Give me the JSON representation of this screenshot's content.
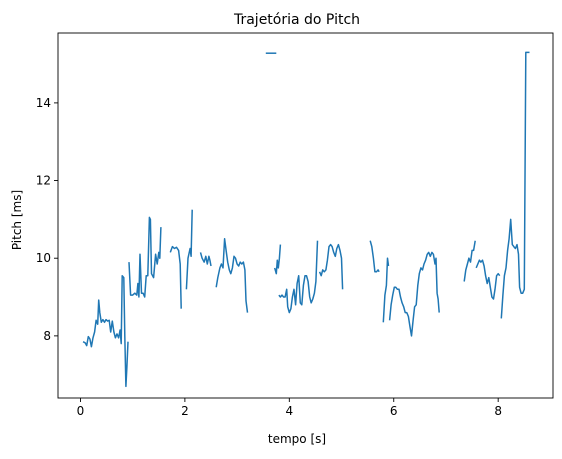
{
  "chart_data": {
    "type": "line",
    "title": "Trajetória do Pitch",
    "xlabel": "tempo [s]",
    "ylabel": "Pitch [ms]",
    "xlim": [
      -0.43,
      9.05
    ],
    "ylim": [
      6.4,
      15.8
    ],
    "x_ticks": [
      0,
      2,
      4,
      6,
      8
    ],
    "x_tick_labels": [
      "0",
      "2",
      "4",
      "6",
      "8"
    ],
    "y_ticks": [
      8,
      10,
      12,
      14
    ],
    "y_tick_labels": [
      "8",
      "10",
      "12",
      "14"
    ],
    "grid": false,
    "legend": "none",
    "series": [
      {
        "color": "#1f77b4",
        "segments": [
          [
            [
              0.05,
              7.85
            ],
            [
              0.09,
              7.82
            ],
            [
              0.12,
              7.75
            ],
            [
              0.15,
              7.98
            ],
            [
              0.18,
              7.92
            ],
            [
              0.21,
              7.72
            ],
            [
              0.24,
              7.95
            ],
            [
              0.27,
              8.1
            ],
            [
              0.3,
              8.4
            ],
            [
              0.33,
              8.3
            ],
            [
              0.35,
              8.92
            ],
            [
              0.37,
              8.6
            ],
            [
              0.4,
              8.35
            ],
            [
              0.43,
              8.42
            ],
            [
              0.46,
              8.35
            ],
            [
              0.49,
              8.42
            ],
            [
              0.52,
              8.38
            ],
            [
              0.55,
              8.4
            ],
            [
              0.58,
              8.1
            ],
            [
              0.61,
              8.38
            ],
            [
              0.64,
              8.1
            ],
            [
              0.67,
              7.95
            ],
            [
              0.7,
              8.05
            ],
            [
              0.73,
              7.95
            ],
            [
              0.76,
              8.15
            ],
            [
              0.78,
              7.8
            ],
            [
              0.8,
              9.55
            ],
            [
              0.83,
              9.5
            ],
            [
              0.85,
              8.0
            ],
            [
              0.87,
              6.7
            ],
            [
              0.89,
              7.2
            ],
            [
              0.91,
              7.85
            ]
          ],
          [
            [
              0.93,
              9.9
            ],
            [
              0.96,
              9.05
            ],
            [
              1.0,
              9.05
            ],
            [
              1.04,
              9.1
            ],
            [
              1.08,
              9.05
            ],
            [
              1.1,
              9.35
            ],
            [
              1.12,
              9.0
            ],
            [
              1.14,
              10.1
            ],
            [
              1.17,
              9.1
            ],
            [
              1.2,
              9.1
            ],
            [
              1.23,
              9.0
            ],
            [
              1.26,
              9.55
            ],
            [
              1.29,
              9.55
            ],
            [
              1.32,
              11.05
            ],
            [
              1.34,
              11.0
            ],
            [
              1.36,
              9.6
            ],
            [
              1.4,
              9.5
            ],
            [
              1.44,
              10.1
            ],
            [
              1.47,
              9.85
            ],
            [
              1.5,
              10.15
            ],
            [
              1.52,
              10.0
            ],
            [
              1.54,
              10.8
            ]
          ],
          [
            [
              1.72,
              10.15
            ],
            [
              1.76,
              10.3
            ],
            [
              1.8,
              10.25
            ],
            [
              1.84,
              10.28
            ],
            [
              1.88,
              10.2
            ],
            [
              1.91,
              9.85
            ],
            [
              1.93,
              8.7
            ]
          ],
          [
            [
              2.03,
              9.2
            ],
            [
              2.06,
              10.0
            ],
            [
              2.1,
              10.25
            ],
            [
              2.12,
              10.05
            ],
            [
              2.14,
              11.25
            ]
          ],
          [
            [
              2.3,
              10.15
            ],
            [
              2.33,
              10.0
            ],
            [
              2.37,
              9.9
            ],
            [
              2.4,
              10.05
            ],
            [
              2.43,
              9.85
            ],
            [
              2.46,
              10.05
            ],
            [
              2.48,
              9.95
            ],
            [
              2.5,
              9.8
            ]
          ],
          [
            [
              2.6,
              9.25
            ],
            [
              2.63,
              9.5
            ],
            [
              2.67,
              9.75
            ],
            [
              2.7,
              9.85
            ],
            [
              2.73,
              9.75
            ],
            [
              2.76,
              10.5
            ],
            [
              2.79,
              10.2
            ],
            [
              2.82,
              9.9
            ],
            [
              2.85,
              9.7
            ],
            [
              2.88,
              9.6
            ],
            [
              2.91,
              9.75
            ],
            [
              2.94,
              10.05
            ],
            [
              2.97,
              10.0
            ],
            [
              3.0,
              9.85
            ],
            [
              3.03,
              9.8
            ],
            [
              3.06,
              9.9
            ],
            [
              3.09,
              9.85
            ],
            [
              3.12,
              9.9
            ],
            [
              3.15,
              9.7
            ],
            [
              3.17,
              8.9
            ],
            [
              3.2,
              8.6
            ]
          ],
          [
            [
              3.55,
              15.28
            ],
            [
              3.65,
              15.28
            ],
            [
              3.75,
              15.28
            ]
          ],
          [
            [
              3.72,
              9.75
            ],
            [
              3.75,
              9.6
            ],
            [
              3.77,
              9.95
            ],
            [
              3.79,
              9.75
            ],
            [
              3.81,
              10.0
            ],
            [
              3.83,
              10.35
            ]
          ],
          [
            [
              3.8,
              9.05
            ],
            [
              3.83,
              9.0
            ],
            [
              3.86,
              9.05
            ],
            [
              3.89,
              9.0
            ],
            [
              3.92,
              9.0
            ],
            [
              3.95,
              9.2
            ],
            [
              3.97,
              8.75
            ],
            [
              4.0,
              8.6
            ],
            [
              4.03,
              8.7
            ],
            [
              4.06,
              9.0
            ],
            [
              4.09,
              9.2
            ],
            [
              4.12,
              8.8
            ],
            [
              4.15,
              9.35
            ],
            [
              4.18,
              9.55
            ],
            [
              4.21,
              8.85
            ],
            [
              4.24,
              8.8
            ],
            [
              4.27,
              9.3
            ],
            [
              4.3,
              9.55
            ],
            [
              4.33,
              9.55
            ],
            [
              4.36,
              9.4
            ],
            [
              4.39,
              9.0
            ],
            [
              4.42,
              8.85
            ],
            [
              4.45,
              8.95
            ],
            [
              4.48,
              9.1
            ],
            [
              4.51,
              9.4
            ],
            [
              4.54,
              10.45
            ]
          ],
          [
            [
              4.58,
              9.65
            ],
            [
              4.61,
              9.55
            ],
            [
              4.64,
              9.7
            ],
            [
              4.67,
              9.65
            ],
            [
              4.7,
              9.7
            ],
            [
              4.73,
              9.95
            ],
            [
              4.76,
              10.3
            ],
            [
              4.79,
              10.35
            ],
            [
              4.82,
              10.3
            ],
            [
              4.85,
              10.15
            ],
            [
              4.88,
              10.05
            ],
            [
              4.91,
              10.25
            ],
            [
              4.94,
              10.35
            ],
            [
              4.97,
              10.2
            ],
            [
              5.0,
              10.0
            ],
            [
              5.02,
              9.2
            ]
          ],
          [
            [
              5.55,
              10.45
            ],
            [
              5.58,
              10.3
            ],
            [
              5.61,
              10.0
            ],
            [
              5.64,
              9.65
            ],
            [
              5.67,
              9.65
            ],
            [
              5.7,
              9.7
            ],
            [
              5.72,
              9.65
            ]
          ],
          [
            [
              5.8,
              8.35
            ],
            [
              5.83,
              9.05
            ],
            [
              5.86,
              9.3
            ],
            [
              5.88,
              10.0
            ],
            [
              5.9,
              9.8
            ]
          ],
          [
            [
              5.92,
              8.4
            ],
            [
              5.95,
              8.8
            ],
            [
              5.98,
              9.05
            ],
            [
              6.01,
              9.25
            ],
            [
              6.04,
              9.25
            ],
            [
              6.07,
              9.2
            ],
            [
              6.1,
              9.2
            ],
            [
              6.13,
              9.0
            ],
            [
              6.16,
              8.85
            ],
            [
              6.19,
              8.75
            ],
            [
              6.22,
              8.6
            ],
            [
              6.25,
              8.6
            ],
            [
              6.28,
              8.5
            ],
            [
              6.31,
              8.25
            ],
            [
              6.34,
              8.0
            ],
            [
              6.37,
              8.4
            ],
            [
              6.4,
              8.75
            ],
            [
              6.43,
              8.8
            ],
            [
              6.46,
              9.3
            ],
            [
              6.49,
              9.6
            ],
            [
              6.52,
              9.75
            ],
            [
              6.55,
              9.7
            ],
            [
              6.58,
              9.85
            ],
            [
              6.61,
              9.95
            ],
            [
              6.64,
              10.1
            ],
            [
              6.67,
              10.15
            ],
            [
              6.7,
              10.05
            ],
            [
              6.73,
              10.15
            ],
            [
              6.76,
              10.1
            ],
            [
              6.79,
              9.85
            ],
            [
              6.81,
              10.0
            ],
            [
              6.83,
              9.1
            ],
            [
              6.85,
              8.95
            ],
            [
              6.87,
              8.6
            ]
          ],
          [
            [
              7.35,
              9.4
            ],
            [
              7.38,
              9.7
            ],
            [
              7.41,
              9.85
            ],
            [
              7.44,
              10.0
            ],
            [
              7.47,
              9.9
            ],
            [
              7.5,
              10.2
            ],
            [
              7.53,
              10.2
            ],
            [
              7.56,
              10.45
            ]
          ],
          [
            [
              7.58,
              9.75
            ],
            [
              7.61,
              9.85
            ],
            [
              7.64,
              9.95
            ],
            [
              7.67,
              9.9
            ],
            [
              7.7,
              9.95
            ],
            [
              7.73,
              9.8
            ],
            [
              7.76,
              9.55
            ],
            [
              7.79,
              9.35
            ],
            [
              7.82,
              9.5
            ],
            [
              7.85,
              9.25
            ],
            [
              7.88,
              9.0
            ],
            [
              7.91,
              8.95
            ],
            [
              7.94,
              9.2
            ],
            [
              7.97,
              9.55
            ],
            [
              8.0,
              9.6
            ],
            [
              8.03,
              9.55
            ]
          ],
          [
            [
              8.06,
              8.45
            ],
            [
              8.09,
              9.05
            ],
            [
              8.12,
              9.55
            ],
            [
              8.15,
              9.75
            ],
            [
              8.18,
              10.2
            ],
            [
              8.21,
              10.5
            ],
            [
              8.24,
              11.0
            ],
            [
              8.27,
              10.35
            ],
            [
              8.3,
              10.3
            ],
            [
              8.33,
              10.25
            ],
            [
              8.36,
              10.35
            ],
            [
              8.39,
              10.1
            ],
            [
              8.41,
              9.25
            ],
            [
              8.44,
              9.1
            ],
            [
              8.47,
              9.1
            ],
            [
              8.5,
              9.2
            ],
            [
              8.53,
              15.3
            ],
            [
              8.56,
              15.3
            ],
            [
              8.6,
              15.3
            ]
          ]
        ]
      }
    ]
  }
}
